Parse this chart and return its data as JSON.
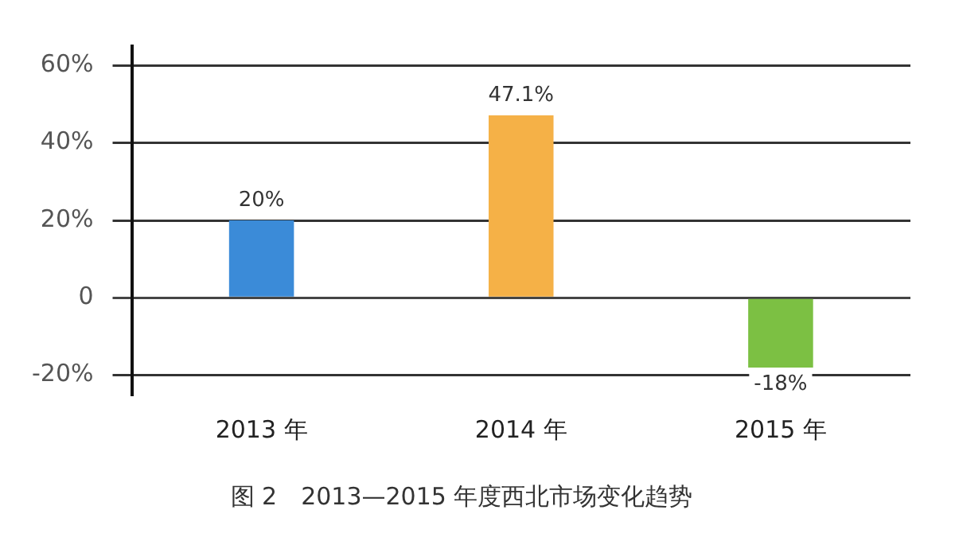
{
  "chart_data": {
    "type": "bar",
    "title": "图 2　2013—2015 年度西北市场变化趋势",
    "categories": [
      "2013 年",
      "2014 年",
      "2015 年"
    ],
    "values": [
      20,
      47.1,
      -18
    ],
    "colors": [
      "#3b8bd8",
      "#f5b147",
      "#7cc043"
    ],
    "value_labels": [
      "20%",
      "47.1%",
      "-18%"
    ],
    "ylim": [
      -25,
      65
    ],
    "yticks": [
      {
        "value": -20,
        "label": "-20%"
      },
      {
        "value": 0,
        "label": "0"
      },
      {
        "value": 20,
        "label": "20%"
      },
      {
        "value": 40,
        "label": "40%"
      },
      {
        "value": 60,
        "label": "60%"
      }
    ],
    "grid": "y",
    "legend": false
  }
}
